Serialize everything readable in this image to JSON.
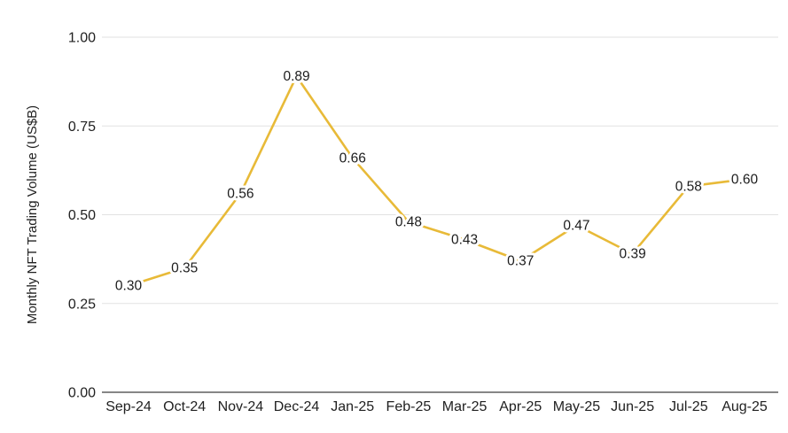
{
  "chart_data": {
    "type": "line",
    "title": "",
    "xlabel": "",
    "ylabel": "Monthly NFT Trading Volume (US$B)",
    "categories": [
      "Sep-24",
      "Oct-24",
      "Nov-24",
      "Dec-24",
      "Jan-25",
      "Feb-25",
      "Mar-25",
      "Apr-25",
      "May-25",
      "Jun-25",
      "Jul-25",
      "Aug-25"
    ],
    "series": [
      {
        "name": "Monthly NFT Trading Volume (US$B)",
        "values": [
          0.3,
          0.35,
          0.56,
          0.89,
          0.66,
          0.48,
          0.43,
          0.37,
          0.47,
          0.39,
          0.58,
          0.6
        ]
      }
    ],
    "data_labels": [
      "0.30",
      "0.35",
      "0.56",
      "0.89",
      "0.66",
      "0.48",
      "0.43",
      "0.37",
      "0.47",
      "0.39",
      "0.58",
      "0.60"
    ],
    "ylim": [
      0.0,
      1.0
    ],
    "yticks": [
      0.0,
      0.25,
      0.5,
      0.75,
      1.0
    ],
    "ytick_labels": [
      "0.00",
      "0.25",
      "0.50",
      "0.75",
      "1.00"
    ],
    "grid": "horizontal",
    "legend": "none",
    "markers": "none",
    "colors": {
      "line": "#E8BA38",
      "gridline": "#E2E2E2",
      "axis_line": "#5E5E5E",
      "tick_text": "#212121",
      "data_label_text": "#1C1C1C",
      "data_label_halo": "#FFFFFF",
      "background": "#FFFFFF"
    }
  }
}
